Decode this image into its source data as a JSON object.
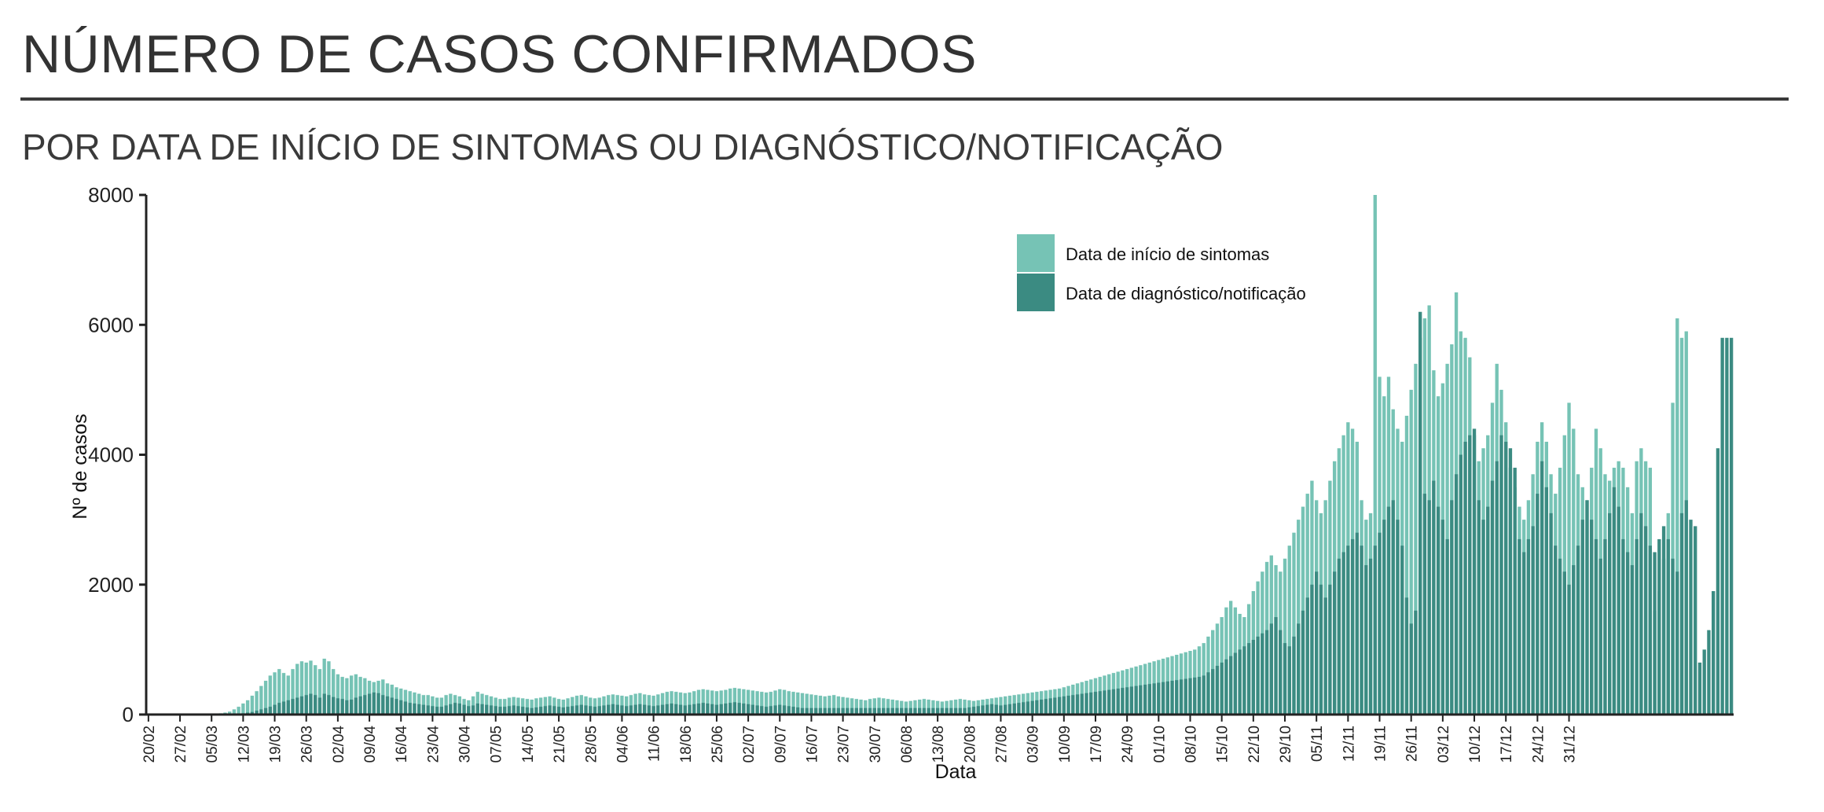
{
  "title": "NÚMERO DE CASOS CONFIRMADOS",
  "subtitle": "POR DATA DE INÍCIO DE SINTOMAS OU DIAGNÓSTICO/NOTIFICAÇÃO",
  "colors": {
    "onset": "#76c3b5",
    "diagnosis": "#3b8b82",
    "axis": "#222222",
    "text": "#333333"
  },
  "chart_data": {
    "type": "bar",
    "stacked": false,
    "overlay": true,
    "xlabel": "Data",
    "ylabel": "Nº de casos",
    "ylim": [
      0,
      8000
    ],
    "yticks": [
      0,
      2000,
      4000,
      6000,
      8000
    ],
    "legend_position": "top-right",
    "legend": [
      "Data de início de sintomas",
      "Data de diagnóstico/notificação"
    ],
    "x_start": "2020-02-20",
    "x_end": "2020-12-31",
    "xtick_labels": [
      "20/02",
      "27/02",
      "05/03",
      "12/03",
      "19/03",
      "26/03",
      "02/04",
      "09/04",
      "16/04",
      "23/04",
      "30/04",
      "07/05",
      "14/05",
      "21/05",
      "28/05",
      "04/06",
      "11/06",
      "18/06",
      "25/06",
      "02/07",
      "09/07",
      "16/07",
      "23/07",
      "30/07",
      "06/08",
      "13/08",
      "20/08",
      "27/08",
      "03/09",
      "10/09",
      "17/09",
      "24/09",
      "01/10",
      "08/10",
      "15/10",
      "22/10",
      "29/10",
      "05/11",
      "12/11",
      "19/11",
      "26/11",
      "03/12",
      "10/12",
      "17/12",
      "24/12",
      "31/12"
    ],
    "series": [
      {
        "name": "Data de início de sintomas",
        "values": [
          0,
          0,
          0,
          0,
          0,
          0,
          0,
          0,
          0,
          0,
          0,
          0,
          0,
          0,
          10,
          15,
          20,
          30,
          45,
          80,
          120,
          170,
          220,
          290,
          360,
          440,
          520,
          600,
          650,
          700,
          640,
          600,
          700,
          780,
          820,
          800,
          830,
          760,
          700,
          860,
          820,
          700,
          620,
          580,
          560,
          600,
          620,
          580,
          560,
          520,
          500,
          520,
          540,
          480,
          460,
          420,
          400,
          380,
          360,
          340,
          320,
          300,
          300,
          280,
          260,
          260,
          300,
          320,
          300,
          280,
          240,
          220,
          280,
          350,
          320,
          300,
          280,
          260,
          240,
          240,
          260,
          270,
          260,
          250,
          240,
          230,
          250,
          260,
          270,
          280,
          260,
          240,
          230,
          250,
          270,
          290,
          300,
          280,
          260,
          250,
          260,
          280,
          300,
          310,
          300,
          290,
          280,
          300,
          320,
          330,
          310,
          300,
          290,
          310,
          330,
          350,
          360,
          350,
          340,
          330,
          340,
          360,
          380,
          390,
          380,
          370,
          360,
          370,
          380,
          400,
          410,
          400,
          390,
          380,
          370,
          360,
          350,
          340,
          350,
          370,
          390,
          380,
          360,
          350,
          340,
          330,
          320,
          310,
          300,
          290,
          280,
          290,
          300,
          280,
          270,
          260,
          250,
          240,
          230,
          220,
          240,
          250,
          260,
          250,
          240,
          230,
          220,
          210,
          200,
          210,
          220,
          230,
          240,
          230,
          220,
          210,
          200,
          210,
          220,
          230,
          240,
          230,
          220,
          210,
          220,
          230,
          240,
          250,
          260,
          270,
          280,
          290,
          300,
          310,
          320,
          330,
          340,
          350,
          360,
          370,
          380,
          390,
          400,
          420,
          440,
          460,
          480,
          500,
          520,
          540,
          560,
          580,
          600,
          620,
          640,
          660,
          680,
          700,
          720,
          740,
          760,
          780,
          800,
          820,
          840,
          860,
          880,
          900,
          920,
          940,
          960,
          980,
          1000,
          1050,
          1100,
          1200,
          1300,
          1400,
          1500,
          1650,
          1750,
          1650,
          1550,
          1500,
          1700,
          1900,
          2050,
          2200,
          2350,
          2450,
          2300,
          2200,
          2400,
          2600,
          2800,
          3000,
          3200,
          3400,
          3600,
          3300,
          3100,
          3300,
          3600,
          3900,
          4100,
          4300,
          4500,
          4400,
          4200,
          3300,
          3000,
          3100,
          8000,
          5200,
          4900,
          5200,
          4700,
          4400,
          4200,
          4600,
          5000,
          5400,
          5800,
          6100,
          6300,
          5300,
          4900,
          5100,
          5400,
          5700,
          6500,
          5900,
          5800,
          5500,
          4300,
          3900,
          4100,
          4300,
          4800,
          5400,
          5000,
          4500,
          3800,
          3500,
          3200,
          3000,
          3300,
          3700,
          4200,
          4500,
          4200,
          3700,
          3400,
          3800,
          4300,
          4800,
          4400,
          3700,
          3500,
          3300,
          3800,
          4400,
          4100,
          3700,
          3600,
          3800,
          3900,
          3800,
          3500,
          3100,
          3900,
          4100,
          3900,
          3800,
          1600,
          1900,
          2400,
          3100,
          4800,
          6100,
          5800,
          5900
        ]
      },
      {
        "name": "Data de diagnóstico/notificação",
        "values": [
          0,
          0,
          0,
          0,
          0,
          0,
          0,
          0,
          0,
          0,
          0,
          0,
          0,
          0,
          0,
          0,
          0,
          5,
          5,
          10,
          15,
          20,
          30,
          40,
          60,
          80,
          100,
          120,
          150,
          180,
          200,
          220,
          240,
          260,
          280,
          300,
          320,
          300,
          260,
          320,
          300,
          270,
          250,
          240,
          220,
          230,
          260,
          280,
          300,
          320,
          340,
          330,
          300,
          280,
          260,
          240,
          220,
          200,
          180,
          170,
          160,
          150,
          140,
          130,
          120,
          120,
          140,
          160,
          180,
          170,
          150,
          130,
          140,
          170,
          160,
          150,
          140,
          130,
          120,
          120,
          130,
          140,
          130,
          120,
          110,
          100,
          110,
          120,
          130,
          140,
          130,
          120,
          110,
          120,
          130,
          140,
          150,
          140,
          130,
          120,
          130,
          140,
          150,
          160,
          150,
          140,
          130,
          140,
          150,
          160,
          150,
          140,
          130,
          140,
          150,
          160,
          170,
          160,
          150,
          140,
          150,
          160,
          170,
          180,
          170,
          160,
          150,
          160,
          170,
          180,
          190,
          180,
          170,
          160,
          150,
          140,
          130,
          120,
          130,
          140,
          150,
          140,
          130,
          120,
          110,
          100,
          100,
          100,
          100,
          100,
          100,
          100,
          100,
          100,
          100,
          100,
          100,
          100,
          100,
          100,
          100,
          100,
          100,
          100,
          100,
          100,
          100,
          100,
          100,
          100,
          100,
          100,
          100,
          100,
          100,
          100,
          100,
          100,
          100,
          100,
          100,
          100,
          110,
          120,
          130,
          140,
          150,
          160,
          150,
          140,
          150,
          160,
          170,
          180,
          190,
          200,
          210,
          220,
          230,
          240,
          250,
          260,
          270,
          280,
          290,
          300,
          310,
          320,
          330,
          340,
          350,
          360,
          370,
          380,
          390,
          400,
          410,
          420,
          430,
          440,
          450,
          460,
          470,
          480,
          490,
          500,
          510,
          520,
          530,
          540,
          550,
          560,
          570,
          580,
          600,
          650,
          700,
          750,
          800,
          850,
          900,
          950,
          1000,
          1050,
          1100,
          1150,
          1200,
          1250,
          1300,
          1400,
          1500,
          1300,
          1100,
          1050,
          1200,
          1400,
          1600,
          1800,
          2000,
          2200,
          2000,
          1800,
          2000,
          2200,
          2400,
          2500,
          2600,
          2700,
          2800,
          2600,
          2300,
          2400,
          2600,
          2800,
          3000,
          3200,
          3300,
          3000,
          2600,
          1800,
          1400,
          1600,
          6200,
          3400,
          3300,
          3600,
          3200,
          3000,
          2700,
          3300,
          3700,
          4000,
          4200,
          4300,
          4400,
          3300,
          3000,
          3200,
          3600,
          3900,
          4300,
          4200,
          4100,
          3800,
          2700,
          2500,
          2700,
          2900,
          3400,
          3900,
          3500,
          3100,
          2600,
          2400,
          2200,
          2000,
          2300,
          2600,
          3000,
          3300,
          3000,
          2700,
          2400,
          2700,
          3100,
          3500,
          3200,
          2700,
          2500,
          2300,
          2700,
          3100,
          2900,
          2600,
          2500,
          2700,
          2900,
          2700,
          2400,
          2200,
          3100,
          3300,
          3000,
          2900,
          800,
          1000,
          1300,
          1900,
          4100,
          5800,
          5800,
          5800
        ]
      }
    ]
  }
}
